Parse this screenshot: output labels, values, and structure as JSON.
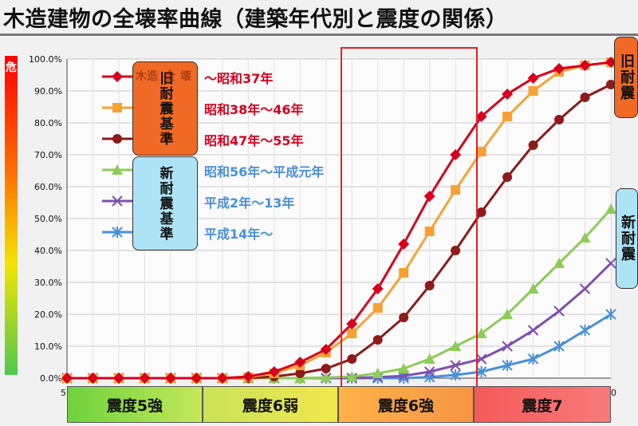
{
  "title": "木造建物の全壊率曲線（建築年代別と震度の関係）",
  "danger_label": "危",
  "boxes": {
    "old_standard": "旧耐震基準",
    "new_standard": "新耐震基準",
    "side_old": "旧耐震",
    "side_new": "新耐震"
  },
  "legend_overlay": [
    "木造",
    "全",
    "壊"
  ],
  "intensity_bands": [
    "震度5強",
    "震度6弱",
    "震度6強",
    "震度7"
  ],
  "axis_edge_labels": {
    "left": "5",
    "right": "0"
  },
  "colors": {
    "s1": "#d6001c",
    "s2": "#f7a134",
    "s3": "#8e1a1a",
    "s4": "#8ccc57",
    "s5": "#7e4fb0",
    "s6": "#4a8fd9",
    "highlight": "#e82020"
  },
  "chart_data": {
    "type": "line",
    "ylim": [
      0,
      100
    ],
    "yticks": [
      "0.0%",
      "10.0%",
      "20.0%",
      "30.0%",
      "40.0%",
      "50.0%",
      "60.0%",
      "70.0%",
      "80.0%",
      "90.0%",
      "100.0%"
    ],
    "grid": true,
    "highlight_band": "震度6強",
    "series": [
      {
        "name": "～昭和37年",
        "marker": "diamond",
        "values": [
          0,
          0,
          0,
          0,
          0,
          0,
          0,
          0.5,
          2,
          5,
          9,
          17,
          28,
          42,
          57,
          70,
          82,
          89,
          94,
          97,
          98,
          99
        ]
      },
      {
        "name": "昭和38年～46年",
        "marker": "square",
        "values": [
          0,
          0,
          0,
          0,
          0,
          0,
          0,
          0.3,
          1.5,
          4,
          8,
          14,
          22,
          33,
          46,
          59,
          71,
          82,
          90,
          96,
          98,
          99
        ]
      },
      {
        "name": "昭和47年～55年",
        "marker": "circle",
        "values": [
          0,
          0,
          0,
          0,
          0,
          0,
          0,
          0,
          0.5,
          1.5,
          3,
          6,
          12,
          19,
          29,
          40,
          52,
          63,
          73,
          81,
          88,
          92
        ]
      },
      {
        "name": "昭和56年～平成元年",
        "marker": "triangle",
        "values": [
          0,
          0,
          0,
          0,
          0,
          0,
          0,
          0,
          0,
          0,
          0.2,
          0.5,
          1.5,
          3,
          6,
          10,
          14,
          20,
          28,
          36,
          44,
          53
        ]
      },
      {
        "name": "平成2年～13年",
        "marker": "x",
        "values": [
          0,
          0,
          0,
          0,
          0,
          0,
          0,
          0,
          0,
          0,
          0,
          0,
          0.3,
          0.7,
          2,
          4,
          6,
          10,
          15,
          21,
          28,
          36
        ]
      },
      {
        "name": "平成14年～",
        "marker": "star",
        "values": [
          0,
          0,
          0,
          0,
          0,
          0,
          0,
          0,
          0,
          0,
          0,
          0,
          0,
          0,
          0.3,
          1,
          2,
          4,
          6,
          10,
          15,
          20
        ]
      }
    ]
  }
}
